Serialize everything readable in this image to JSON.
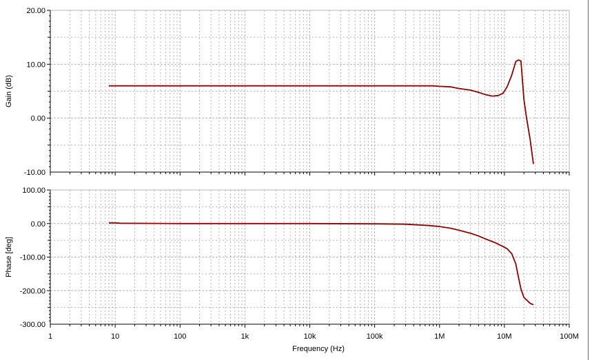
{
  "colors": {
    "trace": "#8b0000",
    "grid": "#b4b4b4",
    "axis": "#000000",
    "background": "#ffffff",
    "window_frame": "#0a246a"
  },
  "chart_data": [
    {
      "type": "line",
      "xscale": "log",
      "xlim": [
        1,
        100000000
      ],
      "ylim": [
        -10,
        20
      ],
      "ylabel": "Gain (dB)",
      "yticks": [
        20,
        10,
        0,
        -10
      ],
      "ytick_labels": [
        "20.00",
        "10.00",
        "0.00",
        "-10.00"
      ],
      "grid": true,
      "series": [
        {
          "x": [
            8,
            10,
            100,
            1000,
            10000,
            100000,
            800000,
            1000000,
            1500000,
            2000000,
            3000000,
            4000000,
            5000000,
            6500000,
            8000000,
            9500000,
            11000000,
            13000000,
            15000000,
            16500000,
            18000000,
            20000000,
            22000000,
            25000000,
            28000000
          ],
          "y": [
            6,
            6,
            6,
            6,
            6,
            6,
            6,
            5.9,
            5.8,
            5.5,
            5.2,
            4.8,
            4.4,
            4.1,
            4.2,
            4.6,
            5.8,
            8.0,
            10.5,
            10.8,
            10.6,
            3.5,
            0.0,
            -4.0,
            -8.5
          ]
        }
      ]
    },
    {
      "type": "line",
      "xscale": "log",
      "xlim": [
        1,
        100000000
      ],
      "ylim": [
        -300,
        100
      ],
      "ylabel": "Phase [deg]",
      "xlabel": "Frequency (Hz)",
      "yticks": [
        100,
        0,
        -100,
        -200,
        -300
      ],
      "ytick_labels": [
        "100.00",
        "0.00",
        "-100.00",
        "-200.00",
        "-300.00"
      ],
      "xticks": [
        1,
        10,
        100,
        1000,
        10000,
        100000,
        1000000,
        10000000,
        100000000
      ],
      "xtick_labels": [
        "1",
        "10",
        "100",
        "1k",
        "10k",
        "100k",
        "1M",
        "10M",
        "100M"
      ],
      "grid": true,
      "series": [
        {
          "x": [
            8,
            10,
            12,
            100,
            1000,
            10000,
            100000,
            300000,
            700000,
            1000000,
            1500000,
            2000000,
            3000000,
            4000000,
            5000000,
            7000000,
            9000000,
            11000000,
            13000000,
            15000000,
            16500000,
            18000000,
            20000000,
            25000000,
            28000000
          ],
          "y": [
            2,
            2,
            1,
            0,
            0,
            0,
            -1,
            -2,
            -6,
            -9,
            -14,
            -20,
            -29,
            -37,
            -45,
            -56,
            -66,
            -75,
            -90,
            -120,
            -160,
            -195,
            -220,
            -238,
            -242
          ]
        }
      ]
    }
  ]
}
